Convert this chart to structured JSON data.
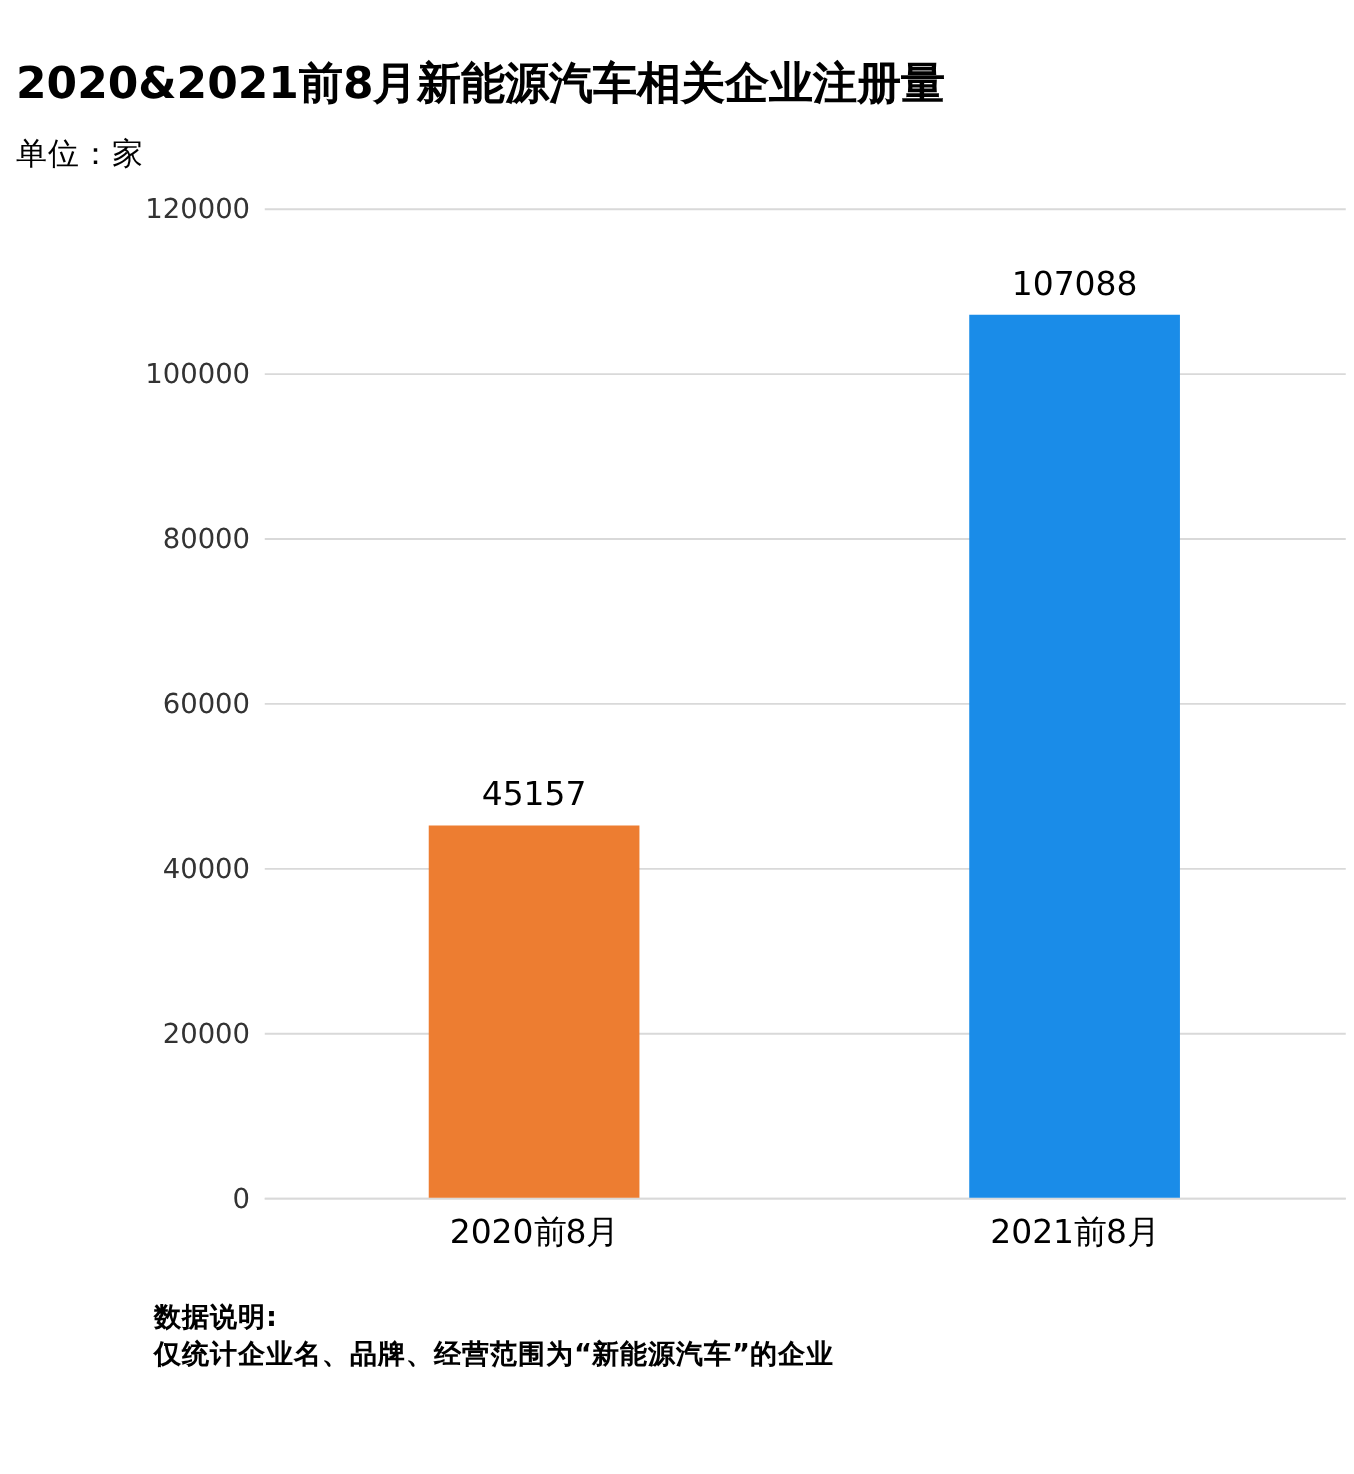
{
  "chart_data": {
    "type": "bar",
    "title": "2020&2021前8月新能源汽车相关企业注册量",
    "subtitle": "单位：家",
    "categories": [
      "2020前8月",
      "2021前8月"
    ],
    "values": [
      45157,
      107088
    ],
    "colors": [
      "#ed7d31",
      "#1a8ce8"
    ],
    "ylim": [
      0,
      120000
    ],
    "yticks": [
      0,
      20000,
      40000,
      60000,
      80000,
      100000,
      120000
    ],
    "grid": "y",
    "data_labels": true,
    "annotations": [
      "数据说明:",
      "仅统计企业名、品牌、经营范围为“新能源汽车”的企业"
    ]
  }
}
